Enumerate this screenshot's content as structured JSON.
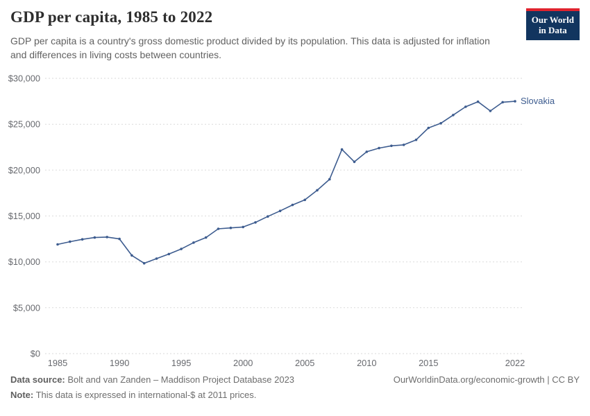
{
  "header": {
    "title": "GDP per capita, 1985 to 2022",
    "subtitle": "GDP per capita is a country's gross domestic product divided by its population. This data is adjusted for inflation and differences in living costs between countries.",
    "logo": {
      "line1": "Our World",
      "line2": "in Data"
    }
  },
  "chart_data": {
    "type": "line",
    "title": "GDP per capita, 1985 to 2022",
    "xlabel": "",
    "ylabel": "",
    "xlim": [
      1985,
      2022
    ],
    "ylim": [
      0,
      30000
    ],
    "grid": "dashed-horizontal",
    "legend": "end-of-line-label",
    "x_ticks": [
      1985,
      1990,
      1995,
      2000,
      2005,
      2010,
      2015,
      2022
    ],
    "y_ticks": [
      0,
      5000,
      10000,
      15000,
      20000,
      25000,
      30000
    ],
    "y_tick_labels": [
      "$0",
      "$5,000",
      "$10,000",
      "$15,000",
      "$20,000",
      "$25,000",
      "$30,000"
    ],
    "series": [
      {
        "name": "Slovakia",
        "color": "#3d5c8f",
        "x": [
          1985,
          1986,
          1987,
          1988,
          1989,
          1990,
          1991,
          1992,
          1993,
          1994,
          1995,
          1996,
          1997,
          1998,
          1999,
          2000,
          2001,
          2002,
          2003,
          2004,
          2005,
          2006,
          2007,
          2008,
          2009,
          2010,
          2011,
          2012,
          2013,
          2014,
          2015,
          2016,
          2017,
          2018,
          2019,
          2020,
          2021,
          2022
        ],
        "values": [
          11900,
          12200,
          12450,
          12650,
          12700,
          12500,
          10700,
          9850,
          10350,
          10850,
          11400,
          12100,
          12650,
          13600,
          13700,
          13800,
          14300,
          14950,
          15550,
          16200,
          16750,
          17800,
          19000,
          22250,
          20900,
          22000,
          22400,
          22650,
          22750,
          23300,
          24600,
          25100,
          26000,
          26900,
          27450,
          26450,
          27400,
          27500
        ]
      }
    ],
    "colors": {
      "line": "#3d5c8f",
      "grid": "#dadada",
      "logo_bg": "#12355f",
      "logo_red": "#e0232e"
    }
  },
  "footer": {
    "source_label": "Data source:",
    "source_text": "Bolt and van Zanden – Maddison Project Database 2023",
    "note_label": "Note:",
    "note_text": "This data is expressed in international-$ at 2011 prices.",
    "link_text": "OurWorldinData.org/economic-growth | CC BY"
  }
}
